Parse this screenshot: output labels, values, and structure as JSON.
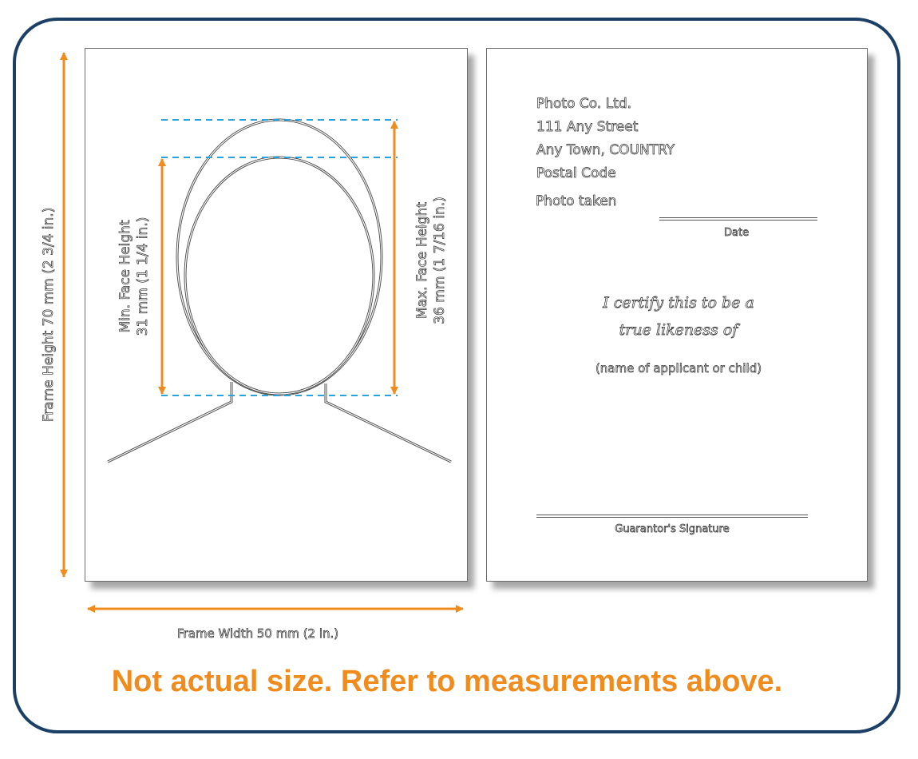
{
  "colors": {
    "frame_border": "#1c3f66",
    "arrow": "#f08c1e",
    "guide_line": "#2aa3dc",
    "footer": "#f08c1e"
  },
  "front": {
    "frame_height_label": "Frame Height 70 mm (2 3/4 in.)",
    "frame_width_label": "Frame Width 50 mm (2 in.)",
    "min_face": {
      "line1": "Min. Face Height",
      "line2": "31 mm (1 1/4 in.)"
    },
    "max_face": {
      "line1": "Max. Face Height",
      "line2": "36 mm (1 7/16 in.)"
    }
  },
  "back": {
    "address": [
      "Photo Co. Ltd.",
      "111 Any Street",
      "Any Town, COUNTRY",
      "Postal Code"
    ],
    "photo_taken_label": "Photo taken",
    "date_label": "Date",
    "certify_line1": "I certify this to be a",
    "certify_line2": "true likeness of",
    "applicant_label": "(name of applicant or child)",
    "signature_label": "Guarantor's Signature"
  },
  "footer_note": "Not actual size. Refer to measurements above."
}
